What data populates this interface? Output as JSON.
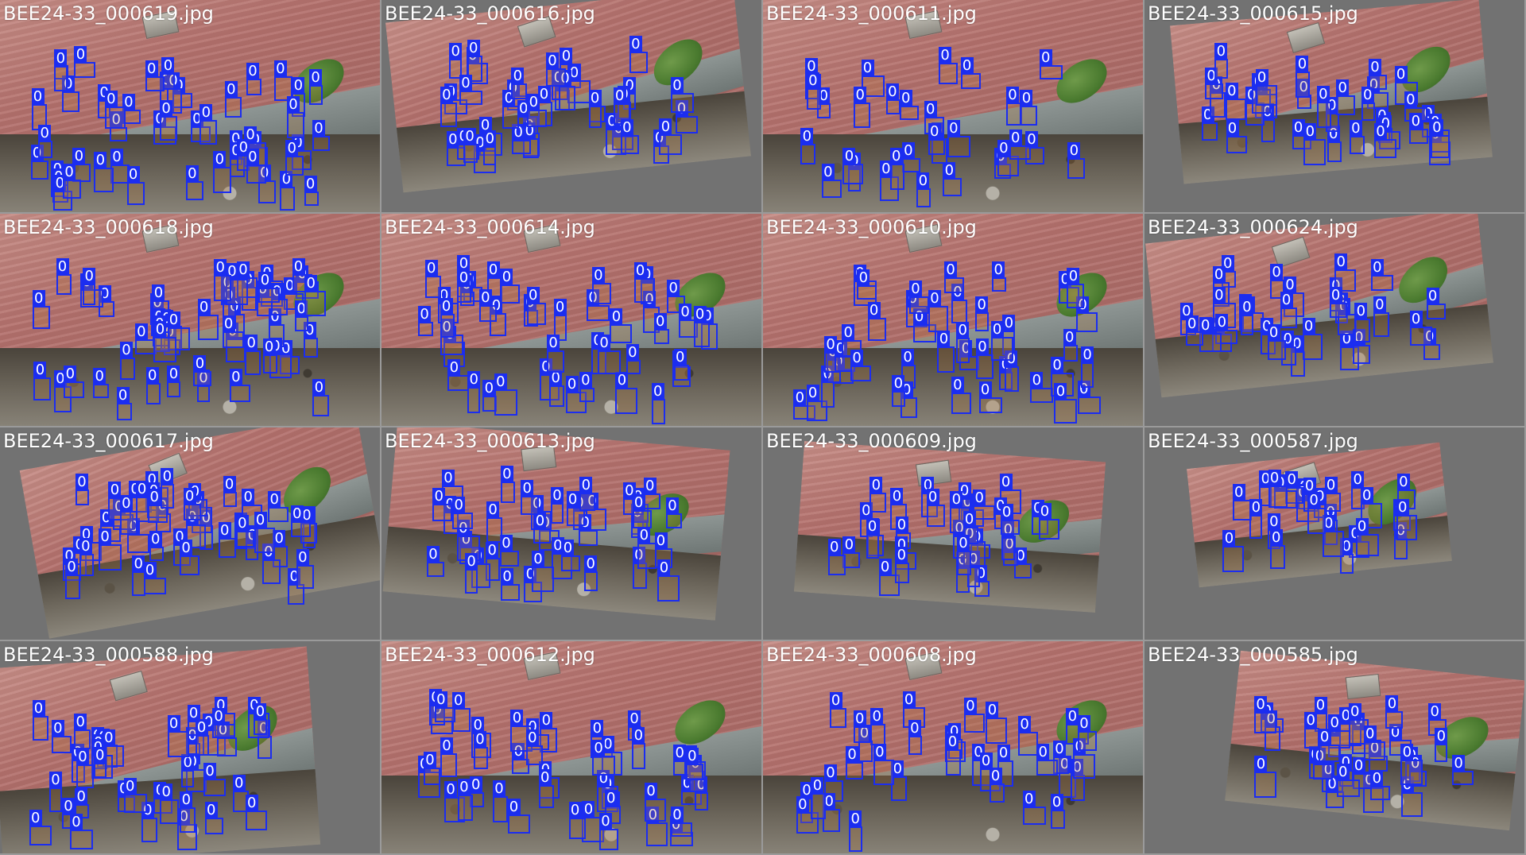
{
  "mosaic": {
    "tiles": [
      {
        "filename": "BEE24-33_000619.jpg",
        "class_label": "0"
      },
      {
        "filename": "BEE24-33_000616.jpg",
        "class_label": "0"
      },
      {
        "filename": "BEE24-33_000611.jpg",
        "class_label": "0"
      },
      {
        "filename": "BEE24-33_000615.jpg",
        "class_label": "0"
      },
      {
        "filename": "BEE24-33_000618.jpg",
        "class_label": "0"
      },
      {
        "filename": "BEE24-33_000614.jpg",
        "class_label": "0"
      },
      {
        "filename": "BEE24-33_000610.jpg",
        "class_label": "0"
      },
      {
        "filename": "BEE24-33_000624.jpg",
        "class_label": "0"
      },
      {
        "filename": "BEE24-33_000617.jpg",
        "class_label": "0"
      },
      {
        "filename": "BEE24-33_000613.jpg",
        "class_label": "0"
      },
      {
        "filename": "BEE24-33_000609.jpg",
        "class_label": "0"
      },
      {
        "filename": "BEE24-33_000587.jpg",
        "class_label": "0"
      },
      {
        "filename": "BEE24-33_000588.jpg",
        "class_label": "0"
      },
      {
        "filename": "BEE24-33_000612.jpg",
        "class_label": "0"
      },
      {
        "filename": "BEE24-33_000608.jpg",
        "class_label": "0"
      },
      {
        "filename": "BEE24-33_000585.jpg",
        "class_label": "0"
      }
    ]
  },
  "colors": {
    "box": "#1b2df0",
    "label_text": "#ffffff",
    "background": "#727272"
  }
}
